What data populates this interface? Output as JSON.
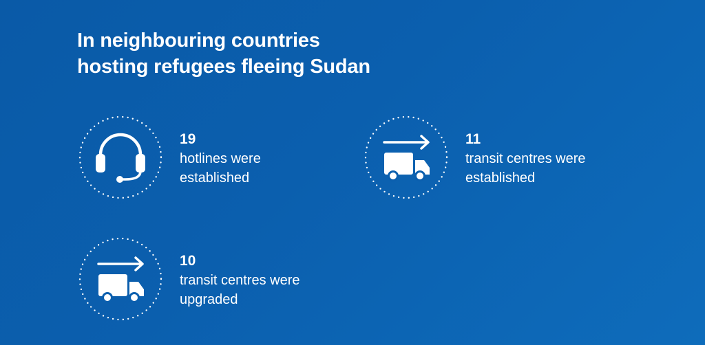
{
  "title": {
    "line1": "In neighbouring countries",
    "line2": "hosting refugees fleeing Sudan"
  },
  "stats": [
    {
      "icon": "headset-icon",
      "number": "19",
      "line1": "hotlines were",
      "line2": "established"
    },
    {
      "icon": "transit-truck-icon",
      "number": "11",
      "line1": "transit centres were",
      "line2": "established"
    },
    {
      "icon": "transit-truck-icon",
      "number": "10",
      "line1": "transit centres were",
      "line2": "upgraded"
    }
  ],
  "colors": {
    "background": "#0b5fae",
    "foreground": "#ffffff"
  }
}
